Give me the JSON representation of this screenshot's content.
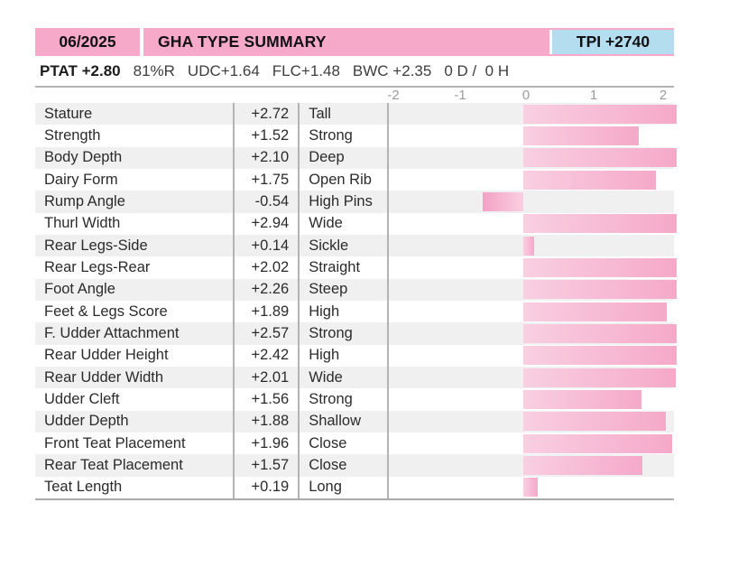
{
  "header": {
    "date": "06/2025",
    "title": "GHA TYPE SUMMARY",
    "tpi": "TPI +2740"
  },
  "stats": {
    "ptat": "PTAT +2.80",
    "items": [
      "81%R",
      "UDC+1.64",
      "FLC+1.48",
      "BWC +2.35",
      "0 D /  0 H"
    ]
  },
  "axis": {
    "ticks": [
      "-2",
      "-1",
      "0",
      "1",
      "2"
    ]
  },
  "table": {
    "rows": [
      {
        "trait": "Stature",
        "value": "+2.72",
        "num": 2.72,
        "descriptor": "Tall"
      },
      {
        "trait": "Strength",
        "value": "+1.52",
        "num": 1.52,
        "descriptor": "Strong"
      },
      {
        "trait": "Body Depth",
        "value": "+2.10",
        "num": 2.1,
        "descriptor": "Deep"
      },
      {
        "trait": "Dairy Form",
        "value": "+1.75",
        "num": 1.75,
        "descriptor": "Open Rib"
      },
      {
        "trait": "Rump Angle",
        "value": "-0.54",
        "num": -0.54,
        "descriptor": "High Pins"
      },
      {
        "trait": "Thurl Width",
        "value": "+2.94",
        "num": 2.94,
        "descriptor": "Wide"
      },
      {
        "trait": "Rear Legs-Side",
        "value": "+0.14",
        "num": 0.14,
        "descriptor": "Sickle"
      },
      {
        "trait": "Rear Legs-Rear",
        "value": "+2.02",
        "num": 2.02,
        "descriptor": "Straight"
      },
      {
        "trait": "Foot Angle",
        "value": "+2.26",
        "num": 2.26,
        "descriptor": "Steep"
      },
      {
        "trait": "Feet & Legs Score",
        "value": "+1.89",
        "num": 1.89,
        "descriptor": "High"
      },
      {
        "trait": "F. Udder Attachment",
        "value": "+2.57",
        "num": 2.57,
        "descriptor": "Strong"
      },
      {
        "trait": "Rear Udder Height",
        "value": "+2.42",
        "num": 2.42,
        "descriptor": "High"
      },
      {
        "trait": "Rear Udder Width",
        "value": "+2.01",
        "num": 2.01,
        "descriptor": "Wide"
      },
      {
        "trait": "Udder Cleft",
        "value": "+1.56",
        "num": 1.56,
        "descriptor": "Strong"
      },
      {
        "trait": "Udder Depth",
        "value": "+1.88",
        "num": 1.88,
        "descriptor": "Shallow"
      },
      {
        "trait": "Front Teat Placement",
        "value": "+1.96",
        "num": 1.96,
        "descriptor": "Close"
      },
      {
        "trait": "Rear Teat Placement",
        "value": "+1.57",
        "num": 1.57,
        "descriptor": "Close"
      },
      {
        "trait": "Teat Length",
        "value": "+0.19",
        "num": 0.19,
        "descriptor": "Long"
      }
    ]
  },
  "colors": {
    "header_pink": "#f7a9ca",
    "tpi_blue": "#b5ddf0",
    "bar_light": "#f9cfe1",
    "bar_deep": "#f5a9c9",
    "row_stripe": "#f0f0f0",
    "axis_gray": "#9b9b9b"
  },
  "chart_data": {
    "type": "bar",
    "orientation": "horizontal",
    "title": "GHA TYPE SUMMARY",
    "categories": [
      "Stature",
      "Strength",
      "Body Depth",
      "Dairy Form",
      "Rump Angle",
      "Thurl Width",
      "Rear Legs-Side",
      "Rear Legs-Rear",
      "Foot Angle",
      "Feet & Legs Score",
      "F. Udder Attachment",
      "Rear Udder Height",
      "Rear Udder Width",
      "Udder Cleft",
      "Udder Depth",
      "Front Teat Placement",
      "Rear Teat Placement",
      "Teat Length"
    ],
    "values": [
      2.72,
      1.52,
      2.1,
      1.75,
      -0.54,
      2.94,
      0.14,
      2.02,
      2.26,
      1.89,
      2.57,
      2.42,
      2.01,
      1.56,
      1.88,
      1.96,
      1.57,
      0.19
    ],
    "value_labels": [
      "+2.72",
      "+1.52",
      "+2.10",
      "+1.75",
      "-0.54",
      "+2.94",
      "+0.14",
      "+2.02",
      "+2.26",
      "+1.89",
      "+2.57",
      "+2.42",
      "+2.01",
      "+1.56",
      "+1.88",
      "+1.96",
      "+1.57",
      "+0.19"
    ],
    "descriptors": [
      "Tall",
      "Strong",
      "Deep",
      "Open Rib",
      "High Pins",
      "Wide",
      "Sickle",
      "Straight",
      "Steep",
      "High",
      "Strong",
      "High",
      "Wide",
      "Strong",
      "Shallow",
      "Close",
      "Close",
      "Long"
    ],
    "xlabel": "",
    "ylabel": "",
    "xlim": [
      -2,
      2
    ],
    "x_ticks": [
      -2,
      -1,
      0,
      1,
      2
    ],
    "bars_clamped_at_axis_edge": true,
    "grid": false,
    "legend": false
  }
}
